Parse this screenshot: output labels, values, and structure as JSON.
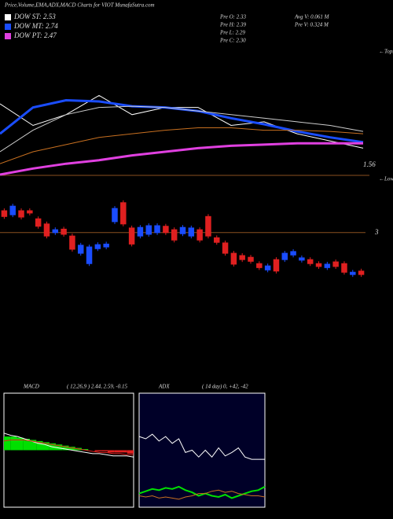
{
  "header": {
    "title": "Price,Volume,EMA,ADX,MACD Charts for VIOT MunafaSutra.com",
    "legend": [
      {
        "label": "DOW ST: 2.53",
        "color": "#ffffff"
      },
      {
        "label": "DOW MT: 2.74",
        "color": "#1a4dff"
      },
      {
        "label": "DOW PT: 2.47",
        "color": "#e040e0"
      }
    ],
    "pre": [
      "Pre  O: 2.33",
      "Pre  H: 2.39",
      "Pre  L: 2.29",
      "Pre  C: 2.30"
    ],
    "volume": [
      "Avg V: 0.061 M",
      "Pre  V: 0.324 M"
    ],
    "last_label": "1.56",
    "tops": "←Tops",
    "lows": "←Lows"
  },
  "chart_data": [
    {
      "type": "line",
      "ylim": [
        -5,
        100
      ],
      "series": [
        {
          "name": "Price",
          "color": "#ffffff",
          "width": 1,
          "values": [
            56,
            38,
            47,
            63,
            47,
            53,
            53,
            38,
            41,
            31,
            25,
            19
          ]
        },
        {
          "name": "EMA ST",
          "color": "#1a4dff",
          "width": 3,
          "values": [
            31,
            53,
            59,
            58,
            54,
            53,
            50,
            44,
            39,
            33,
            28,
            24
          ]
        },
        {
          "name": "EMA MT",
          "color": "#cccccc",
          "width": 1,
          "values": [
            16,
            34,
            47,
            53,
            54,
            53,
            50,
            47,
            44,
            41,
            38,
            33
          ]
        },
        {
          "name": "EMA LT",
          "color": "#c87020",
          "width": 1,
          "values": [
            6,
            16,
            22,
            28,
            31,
            34,
            36,
            36,
            34,
            34,
            33,
            31
          ]
        },
        {
          "name": "EMA PT",
          "color": "#e040e0",
          "width": 3,
          "values": [
            -3,
            2,
            6,
            9,
            13,
            16,
            19,
            21,
            22,
            23,
            23,
            23
          ]
        }
      ]
    },
    {
      "type": "candlestick",
      "ylim": [
        1.3,
        3.9
      ],
      "yticks": [
        3
      ],
      "up_color": "#1a4dff",
      "down_color": "#e02020",
      "open": [
        3.38,
        3.31,
        3.38,
        3.38,
        3.24,
        3.15,
        3.0,
        3.06,
        2.94,
        2.64,
        2.46,
        2.72,
        2.75,
        3.19,
        3.52,
        3.08,
        2.94,
        2.97,
        3.0,
        3.11,
        3.05,
        2.98,
        2.94,
        3.05,
        3.28,
        2.91,
        2.82,
        2.64,
        2.6,
        2.57,
        2.46,
        2.35,
        2.53,
        2.53,
        2.61,
        2.52,
        2.53,
        2.46,
        2.39,
        2.49,
        2.46,
        2.27,
        2.33
      ],
      "close": [
        3.28,
        3.46,
        3.27,
        3.34,
        3.11,
        2.94,
        3.05,
        2.97,
        2.71,
        2.78,
        2.75,
        2.79,
        2.8,
        3.42,
        3.15,
        2.8,
        3.09,
        3.12,
        3.12,
        3.0,
        2.87,
        3.09,
        3.08,
        2.87,
        2.94,
        2.83,
        2.64,
        2.45,
        2.53,
        2.5,
        2.39,
        2.42,
        2.33,
        2.64,
        2.67,
        2.56,
        2.46,
        2.41,
        2.45,
        2.41,
        2.31,
        2.31,
        2.27
      ]
    },
    {
      "type": "macd",
      "title": "MACD",
      "subtitle": "( 12,26,9 ) 2.44, 2.59, -0.15",
      "ylim": [
        -0.5,
        0.5
      ],
      "histogram": {
        "up_color": "#00e000",
        "down_color": "#e02020",
        "values": [
          0.12,
          0.12,
          0.11,
          0.1,
          0.09,
          0.08,
          0.07,
          0.06,
          0.05,
          0.04,
          0.03,
          0.02,
          0.01,
          0,
          -0.01,
          -0.01,
          -0.02,
          -0.02,
          -0.02,
          -0.03
        ]
      },
      "series": [
        {
          "name": "MACD",
          "color": "#ffffff",
          "width": 1,
          "values": [
            0.15,
            0.13,
            0.12,
            0.1,
            0.08,
            0.06,
            0.05,
            0.03,
            0.02,
            0.01,
            0,
            -0.01,
            -0.02,
            -0.03,
            -0.03,
            -0.04,
            -0.05,
            -0.05,
            -0.05,
            -0.06
          ]
        },
        {
          "name": "Signal",
          "color": "#e02020",
          "width": 1,
          "values": [
            0.08,
            0.09,
            0.09,
            0.09,
            0.08,
            0.07,
            0.06,
            0.05,
            0.04,
            0.03,
            0.02,
            0.01,
            0,
            -0.01,
            -0.02,
            -0.02,
            -0.03,
            -0.03,
            -0.04,
            -0.04
          ]
        }
      ]
    },
    {
      "type": "line",
      "title": "ADX",
      "subtitle": "( 14  day) 0, +42, -42",
      "ylim": [
        0,
        100
      ],
      "background": "#000028",
      "series": [
        {
          "name": "ADX",
          "color": "#ffffff",
          "width": 1,
          "values": [
            62,
            60,
            64,
            58,
            62,
            56,
            60,
            48,
            50,
            44,
            50,
            44,
            52,
            45,
            48,
            52,
            44,
            42,
            42,
            42
          ]
        },
        {
          "name": "+DI",
          "color": "#00e000",
          "width": 2,
          "values": [
            12,
            14,
            16,
            15,
            17,
            16,
            18,
            15,
            13,
            10,
            12,
            10,
            9,
            11,
            8,
            10,
            12,
            14,
            15,
            18
          ]
        },
        {
          "name": "-DI",
          "color": "#c87020",
          "width": 1,
          "values": [
            10,
            9,
            10,
            8,
            9,
            8,
            7,
            9,
            10,
            12,
            12,
            14,
            15,
            13,
            14,
            12,
            11,
            10,
            10,
            9
          ]
        }
      ]
    }
  ]
}
